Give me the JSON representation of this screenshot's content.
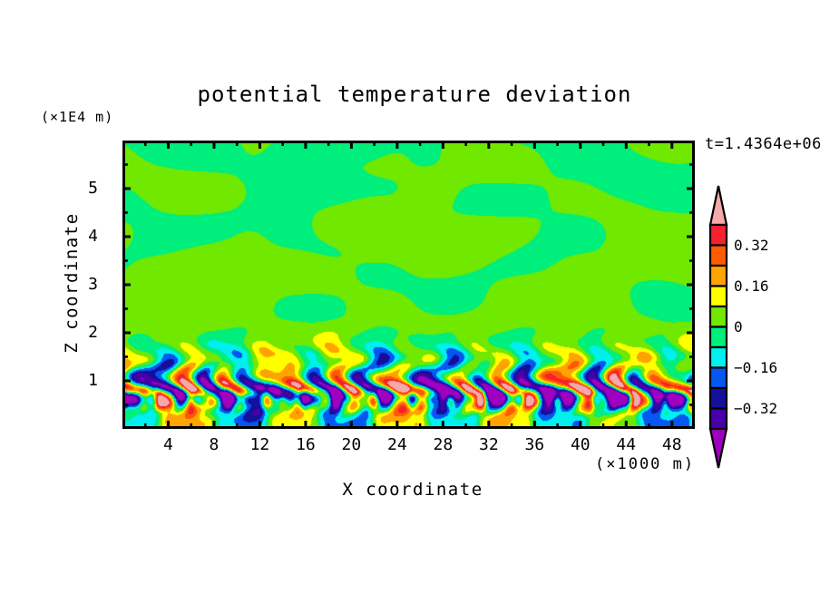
{
  "title": "potential temperature deviation",
  "annotations": {
    "time": "t=1.4364e+06"
  },
  "axes": {
    "x": {
      "title": "X coordinate",
      "unit_label": "(×1000 m)",
      "range": [
        0,
        50
      ],
      "major_ticks": [
        4,
        8,
        12,
        16,
        20,
        24,
        28,
        32,
        36,
        40,
        44,
        48
      ],
      "major_tick_labels": [
        "4",
        "8",
        "12",
        "16",
        "20",
        "24",
        "28",
        "32",
        "36",
        "40",
        "44",
        "48"
      ],
      "minor_ticks": [
        2,
        6,
        10,
        14,
        18,
        22,
        26,
        30,
        34,
        38,
        42,
        46,
        50
      ]
    },
    "z": {
      "title": "Z coordinate",
      "unit_label": "(×1E4 m)",
      "range": [
        0,
        6
      ],
      "major_ticks": [
        1,
        2,
        3,
        4,
        5
      ],
      "major_tick_labels": [
        "1",
        "2",
        "3",
        "4",
        "5"
      ],
      "minor_ticks": [
        0.5,
        1.5,
        2.5,
        3.5,
        4.5,
        5.5
      ]
    }
  },
  "colorbar": {
    "tick_labels": [
      {
        "text": "0.32",
        "value": 0.32
      },
      {
        "text": "0.16",
        "value": 0.16
      },
      {
        "text": "0",
        "value": 0
      },
      {
        "text": "−0.16",
        "value": -0.16
      },
      {
        "text": "−0.32",
        "value": -0.32
      }
    ],
    "has_upper_overflow_arrow": true,
    "has_lower_overflow_arrow": true
  },
  "chart_data": {
    "type": "filled_contour",
    "title": "potential temperature deviation",
    "xlabel": "X coordinate (x1000 m)",
    "ylabel": "Z coordinate (x1E4 m)",
    "time_annotation": "t=1.4364e+06",
    "xlim": [
      0,
      50
    ],
    "zlim": [
      0,
      6
    ],
    "contour_interval": 0.08,
    "levels_min": -0.4,
    "levels_step": 0.08,
    "levels_bins": 10,
    "palette_low_to_high": [
      "#A000BF",
      "#4A00A8",
      "#150F9E",
      "#0457F0",
      "#00EFEF",
      "#00EE7C",
      "#70E800",
      "#FFFF00",
      "#FFA300",
      "#FF5A00",
      "#F5212E",
      "#F5A9A9"
    ],
    "description": "Mostly weak deviations (|v|<0.08, two green bands) aloft; strong turbulent layer of +/-0.4 streaks near z=0.5-1.5",
    "field": {
      "background": {
        "clip_amp": 0.079,
        "clip_scale": 0.062,
        "bias": {
          "amp": 0.026,
          "period": 7.6,
          "center": 2.9
        },
        "modes": [
          {
            "amp": 0.052,
            "lx": 30,
            "phx": 0.7,
            "lz": 2.6,
            "phz": 1.15,
            "fmz": {
              "gain": 1.5,
              "period": 5.2,
              "phase": 0.4
            },
            "fmx": {
              "gain": 0.6,
              "period": 23,
              "phase": 2.1
            }
          },
          {
            "amp": 0.04,
            "lx": 17,
            "phx": 2.9,
            "lz": 2.05,
            "phz": 2.8,
            "fmz": {
              "gain": 1.1,
              "period": 3.4,
              "phase": 1.6
            }
          },
          {
            "amp": 0.027,
            "lx": 11.5,
            "phx": 5.1,
            "lz": 1.55,
            "phz": 0.45,
            "fmx": {
              "gain": 0.8,
              "period": 14,
              "phase": 1.0
            }
          }
        ]
      },
      "turbulence_modes": [
        {
          "amp": 0.46,
          "zc": 0.82,
          "zw": 0.4,
          "lx": 4.8,
          "phx": 0.4,
          "fmz": {
            "gain": 1.9,
            "period": 1.05,
            "phase": 1.2
          },
          "fmx": {
            "gain": 1.0,
            "period": 12,
            "phase": 2.4
          }
        },
        {
          "amp": 0.34,
          "zc": 0.6,
          "zw": 0.22,
          "lx": 8.2,
          "phx": 3.6,
          "fmx": {
            "gain": 1.5,
            "period": 3.2,
            "phase": 0.8
          }
        },
        {
          "amp": -0.17,
          "zc": 0.66,
          "zw": 0.13,
          "lx": null
        },
        {
          "amp": 0.15,
          "zc": 1.45,
          "zw": 0.42,
          "lx": 6.4,
          "phx": 1.9,
          "fmz": {
            "gain": 1.0,
            "period": 0.85,
            "phase": 0.3
          }
        },
        {
          "amp": 0.16,
          "zc": 0.18,
          "zw": 0.45,
          "lx": 9.5,
          "phx": 4.4,
          "fmx": {
            "gain": 0.9,
            "period": 4.6,
            "phase": 1.4
          }
        },
        {
          "amp": 0.07,
          "zc": 1.15,
          "zw": 0.55,
          "lx": 3.1,
          "phx": 2.6
        }
      ]
    }
  }
}
